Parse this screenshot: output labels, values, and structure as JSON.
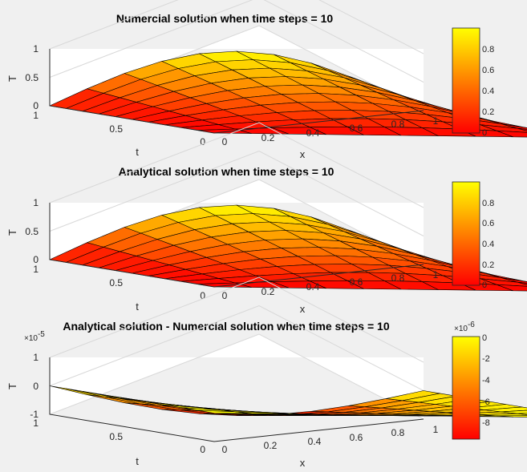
{
  "colormap": {
    "name": "autumn",
    "low": "#ff0000",
    "high": "#ffff00"
  },
  "chart_data": [
    {
      "type": "surface",
      "title": "Numercial solution when time steps = 10",
      "xlabel": "x",
      "ylabel": "t",
      "zlabel": "T",
      "x": [
        0,
        0.1,
        0.2,
        0.3,
        0.4,
        0.5,
        0.6,
        0.7,
        0.8,
        0.9,
        1
      ],
      "t": [
        0,
        0.1,
        0.2,
        0.3,
        0.4,
        0.5,
        0.6,
        0.7,
        0.8,
        0.9,
        1
      ],
      "z_formula": "T(x,t) = t * sin(pi*x)",
      "z_range": [
        0,
        1
      ],
      "x_ticks": [
        "0",
        "0.2",
        "0.4",
        "0.6",
        "0.8",
        "1"
      ],
      "t_ticks": [
        "0",
        "0.5",
        "1"
      ],
      "z_ticks": [
        "0",
        "0.5",
        "1"
      ],
      "colorbar_ticks": [
        "0",
        "0.2",
        "0.4",
        "0.6",
        "0.8"
      ],
      "colorbar_exponent": "",
      "z_exponent": ""
    },
    {
      "type": "surface",
      "title": "Analytical solution when time steps = 10",
      "xlabel": "x",
      "ylabel": "t",
      "zlabel": "T",
      "x": [
        0,
        0.1,
        0.2,
        0.3,
        0.4,
        0.5,
        0.6,
        0.7,
        0.8,
        0.9,
        1
      ],
      "t": [
        0,
        0.1,
        0.2,
        0.3,
        0.4,
        0.5,
        0.6,
        0.7,
        0.8,
        0.9,
        1
      ],
      "z_formula": "T(x,t) = t * sin(pi*x)",
      "z_range": [
        0,
        1
      ],
      "x_ticks": [
        "0",
        "0.2",
        "0.4",
        "0.6",
        "0.8",
        "1"
      ],
      "t_ticks": [
        "0",
        "0.5",
        "1"
      ],
      "z_ticks": [
        "0",
        "0.5",
        "1"
      ],
      "colorbar_ticks": [
        "0",
        "0.2",
        "0.4",
        "0.6",
        "0.8"
      ],
      "colorbar_exponent": "",
      "z_exponent": ""
    },
    {
      "type": "surface",
      "title": "Analytical solution - Numercial solution when time steps = 10",
      "xlabel": "x",
      "ylabel": "t",
      "zlabel": "T",
      "x": [
        0,
        0.1,
        0.2,
        0.3,
        0.4,
        0.5,
        0.6,
        0.7,
        0.8,
        0.9,
        1
      ],
      "t": [
        0,
        0.1,
        0.2,
        0.3,
        0.4,
        0.5,
        0.6,
        0.7,
        0.8,
        0.9,
        1
      ],
      "z_formula": "T(x,t) = -0.0000096 * t * sin(pi*x)",
      "z_range": [
        -1e-05,
        1e-05
      ],
      "color_range": [
        -9.6e-06,
        0
      ],
      "x_ticks": [
        "0",
        "0.2",
        "0.4",
        "0.6",
        "0.8",
        "1"
      ],
      "t_ticks": [
        "0",
        "0.5",
        "1"
      ],
      "z_ticks": [
        "-1",
        "0",
        "1"
      ],
      "colorbar_ticks": [
        "-8",
        "-6",
        "-4",
        "-2",
        "0"
      ],
      "colorbar_exponent": "-6",
      "z_exponent": "-5"
    }
  ]
}
